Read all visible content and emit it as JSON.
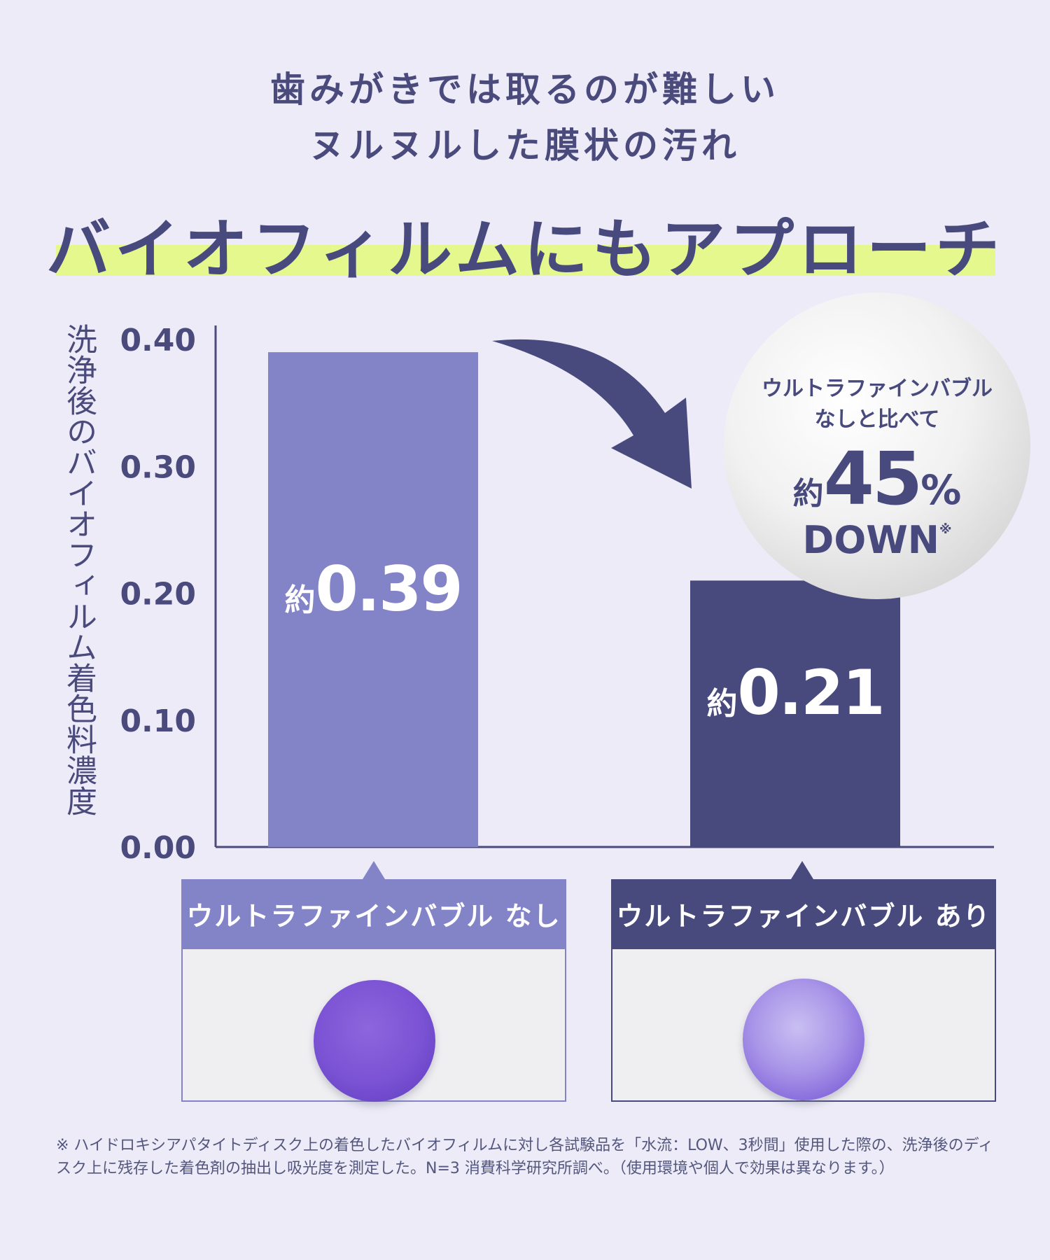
{
  "heading": {
    "line1": "歯みがきでは取るのが難しい",
    "line2": "ヌルヌルした膜状の汚れ",
    "catch": "バイオフィルムにもアプローチ"
  },
  "colors": {
    "background": "#ecebf7",
    "bar_without": "#8383c8",
    "bar_with": "#484a7e",
    "highlight": "#e4f88e",
    "text": "#4a4a7c"
  },
  "chart_data": {
    "type": "bar",
    "ylabel": "洗浄後のバイオフィルム着色料濃度",
    "ylim": [
      0,
      0.42
    ],
    "yticks": [
      "0.40",
      "0.30",
      "0.20",
      "0.10",
      "0.00"
    ],
    "ytick_values": [
      0.4,
      0.3,
      0.2,
      0.1,
      0.0
    ],
    "categories": [
      "ウルトラファインバブル なし",
      "ウルトラファインバブル あり"
    ],
    "values": [
      0.39,
      0.21
    ],
    "data_labels": [
      {
        "prefix": "約",
        "value": "0.39"
      },
      {
        "prefix": "約",
        "value": "0.21"
      }
    ],
    "annotation": {
      "line1": "ウルトラファインバブル",
      "line2": "なしと比べて",
      "prefix": "約",
      "value": "45",
      "unit": "%",
      "line4": "DOWN",
      "mark": "※"
    },
    "grid": false
  },
  "footnote": "※ ハイドロキシアパタイトディスク上の着色したバイオフィルムに対し各試験品を「水流：LOW、3秒間」使用した際の、洗浄後のディスク上に残存した着色剤の抽出し吸光度を測定した。N=3 消費科学研究所調べ。（使用環境や個人で効果は異なります。）"
}
